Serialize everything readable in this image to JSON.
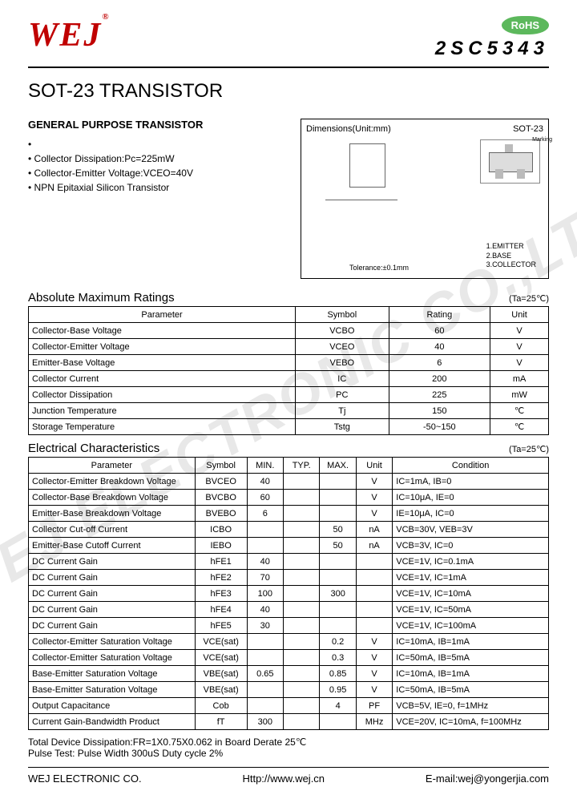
{
  "header": {
    "logo": "WEJ",
    "logo_color": "#c00000",
    "rohs": "RoHS",
    "part_number": "2SC5343"
  },
  "title": "SOT-23 TRANSISTOR",
  "features": {
    "heading": "GENERAL PURPOSE TRANSISTOR",
    "items": [
      "Collector Dissipation:Pc=225mW",
      "Collector-Emitter Voltage:VCEO=40V",
      "NPN Epitaxial Silicon Transistor"
    ]
  },
  "diagram": {
    "dim_label": "Dimensions(Unit:mm)",
    "package": "SOT-23",
    "tolerance": "Tolerance:±0.1mm",
    "marking": "Marking",
    "pins": [
      "1.EMITTER",
      "2.BASE",
      "3.COLLECTOR"
    ]
  },
  "temp_note": "(Ta=25℃)",
  "abs_max": {
    "title": "Absolute Maximum Ratings",
    "columns": [
      "Parameter",
      "Symbol",
      "Rating",
      "Unit"
    ],
    "rows": [
      [
        "Collector-Base Voltage",
        "VCBO",
        "60",
        "V"
      ],
      [
        "Collector-Emitter Voltage",
        "VCEO",
        "40",
        "V"
      ],
      [
        "Emitter-Base Voltage",
        "VEBO",
        "6",
        "V"
      ],
      [
        "Collector Current",
        "IC",
        "200",
        "mA"
      ],
      [
        "Collector Dissipation",
        "PC",
        "225",
        "mW"
      ],
      [
        "Junction Temperature",
        "Tj",
        "150",
        "℃"
      ],
      [
        "Storage Temperature",
        "Tstg",
        "-50~150",
        "℃"
      ]
    ]
  },
  "elec": {
    "title": "Electrical Characteristics",
    "columns": [
      "Parameter",
      "Symbol",
      "MIN.",
      "TYP.",
      "MAX.",
      "Unit",
      "Condition"
    ],
    "rows": [
      [
        "Collector-Emitter Breakdown Voltage",
        "BVCEO",
        "40",
        "",
        "",
        "V",
        "IC=1mA, IB=0"
      ],
      [
        "Collector-Base Breakdown Voltage",
        "BVCBO",
        "60",
        "",
        "",
        "V",
        "IC=10μA, IE=0"
      ],
      [
        "Emitter-Base Breakdown Voltage",
        "BVEBO",
        "6",
        "",
        "",
        "V",
        "IE=10μA, IC=0"
      ],
      [
        "Collector Cut-off Current",
        "ICBO",
        "",
        "",
        "50",
        "nA",
        "VCB=30V, VEB=3V"
      ],
      [
        "Emitter-Base Cutoff Current",
        "IEBO",
        "",
        "",
        "50",
        "nA",
        "VCB=3V, IC=0"
      ],
      [
        "DC Current Gain",
        "hFE1",
        "40",
        "",
        "",
        "",
        "VCE=1V, IC=0.1mA"
      ],
      [
        "DC Current Gain",
        "hFE2",
        "70",
        "",
        "",
        "",
        "VCE=1V, IC=1mA"
      ],
      [
        "DC Current Gain",
        "hFE3",
        "100",
        "",
        "300",
        "",
        "VCE=1V, IC=10mA"
      ],
      [
        "DC Current Gain",
        "hFE4",
        "40",
        "",
        "",
        "",
        "VCE=1V, IC=50mA"
      ],
      [
        "DC Current Gain",
        "hFE5",
        "30",
        "",
        "",
        "",
        "VCE=1V, IC=100mA"
      ],
      [
        "Collector-Emitter Saturation Voltage",
        "VCE(sat)",
        "",
        "",
        "0.2",
        "V",
        "IC=10mA, IB=1mA"
      ],
      [
        "Collector-Emitter Saturation Voltage",
        "VCE(sat)",
        "",
        "",
        "0.3",
        "V",
        "IC=50mA, IB=5mA"
      ],
      [
        "Base-Emitter Saturation Voltage",
        "VBE(sat)",
        "0.65",
        "",
        "0.85",
        "V",
        "IC=10mA, IB=1mA"
      ],
      [
        "Base-Emitter Saturation Voltage",
        "VBE(sat)",
        "",
        "",
        "0.95",
        "V",
        "IC=50mA, IB=5mA"
      ],
      [
        "Output Capacitance",
        "Cob",
        "",
        "",
        "4",
        "PF",
        "VCB=5V, IE=0, f=1MHz"
      ],
      [
        "Current Gain-Bandwidth Product",
        "fT",
        "300",
        "",
        "",
        "MHz",
        "VCE=20V, IC=10mA, f=100MHz"
      ]
    ]
  },
  "notes": [
    "Total Device Dissipation:FR=1X0.75X0.062 in Board Derate 25℃",
    "Pulse Test: Pulse Width 300uS Duty cycle 2%"
  ],
  "footer": {
    "company": "WEJ ELECTRONIC CO.",
    "url": "Http://www.wej.cn",
    "email": "E-mail:wej@yongerjia.com"
  },
  "watermark": "WEJ ELECTRONIC CO.,LTD"
}
